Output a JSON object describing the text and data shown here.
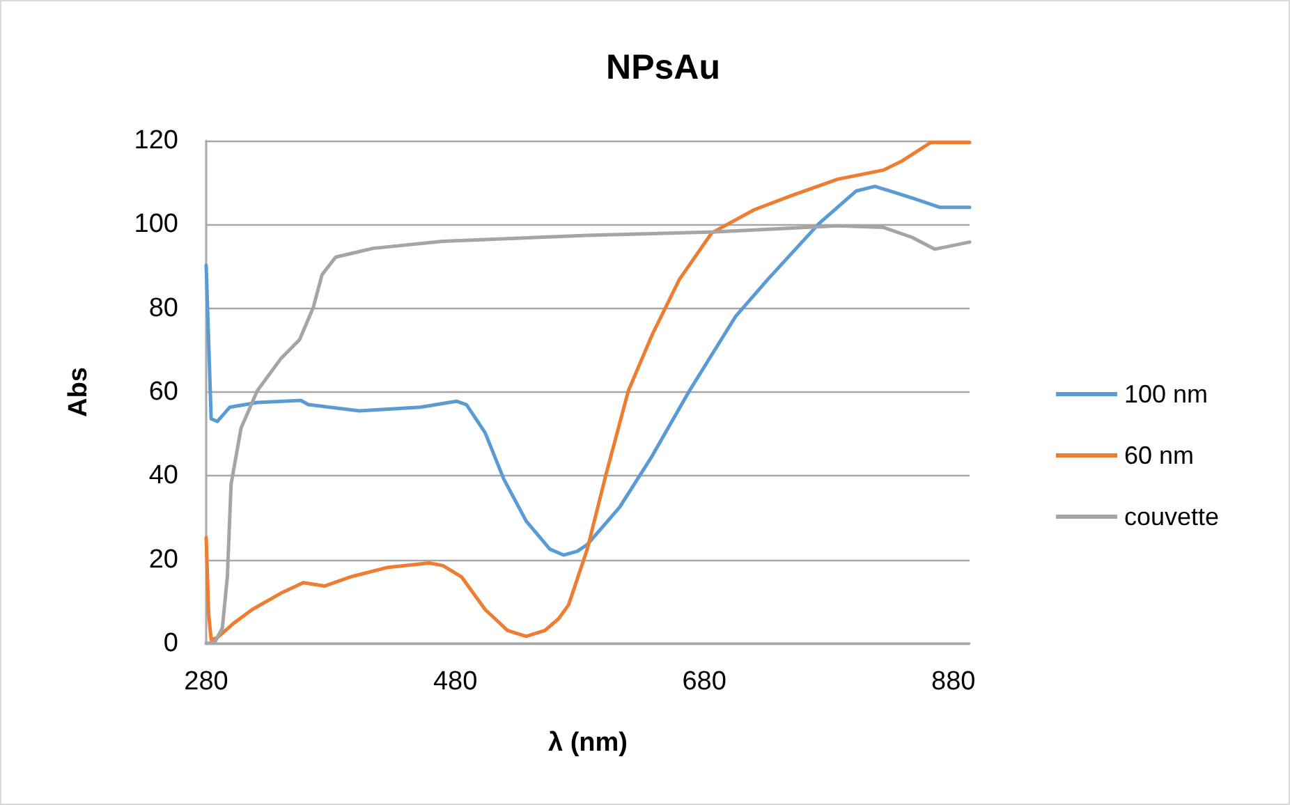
{
  "chart_data": {
    "type": "line",
    "title": "NPsAu",
    "xlabel": "λ (nm)",
    "ylabel": "Abs",
    "xlim": [
      280,
      893
    ],
    "xticks": [
      280,
      480,
      680,
      880
    ],
    "ylim": [
      0,
      120
    ],
    "yticks": [
      0,
      20,
      40,
      60,
      80,
      100,
      120
    ],
    "grid": "y",
    "legend": "right",
    "marker": "none",
    "line_style": "solid",
    "series": [
      {
        "name": "100 nm",
        "color": "#5b9bd5",
        "x": [
          280,
          284,
          289,
          299,
          321,
          356,
          362,
          403,
          452,
          481,
          489,
          504,
          519,
          537,
          556,
          567,
          578,
          586,
          612,
          638,
          668,
          705,
          731,
          772,
          802,
          817,
          847,
          869,
          893
        ],
        "values": [
          90.2,
          53.6,
          53,
          56.4,
          57.5,
          58,
          57,
          55.5,
          56.4,
          57.8,
          57,
          50.3,
          39.2,
          29.2,
          22.5,
          21.1,
          22,
          23.6,
          32.5,
          44.7,
          60.3,
          78,
          86.9,
          100.2,
          108,
          109.1,
          106.3,
          104.1,
          104.1
        ]
      },
      {
        "name": "60 nm",
        "color": "#ed7d31",
        "x": [
          280,
          282,
          284,
          289,
          302,
          317,
          340,
          358,
          375,
          396,
          425,
          459,
          470,
          485,
          504,
          522,
          537,
          552,
          563,
          571,
          586,
          601,
          619,
          638,
          660,
          686,
          720,
          750,
          787,
          824,
          839,
          862,
          893
        ],
        "values": [
          25.3,
          7,
          0.9,
          1.4,
          4.8,
          8.1,
          12,
          14.5,
          13.7,
          15.9,
          18.1,
          19.2,
          18.6,
          15.9,
          8.1,
          3.1,
          1.7,
          3.1,
          5.9,
          9.2,
          22.5,
          40.3,
          60.3,
          73.6,
          86.9,
          98,
          103.5,
          106.9,
          110.8,
          113,
          115.2,
          119.6,
          119.6
        ]
      },
      {
        "name": "couvette",
        "color": "#a5a5a5",
        "x": [
          280,
          287,
          293,
          297,
          300,
          308,
          321,
          340,
          355,
          366,
          373,
          384,
          414,
          470,
          586,
          686,
          787,
          824,
          847,
          865,
          893
        ],
        "values": [
          0,
          0.3,
          3.7,
          15.9,
          38,
          51.4,
          60.3,
          68,
          72.5,
          80.2,
          88,
          92.2,
          94.3,
          96,
          97.4,
          98.2,
          99.7,
          99.3,
          96.9,
          94.1,
          95.8
        ]
      }
    ]
  }
}
